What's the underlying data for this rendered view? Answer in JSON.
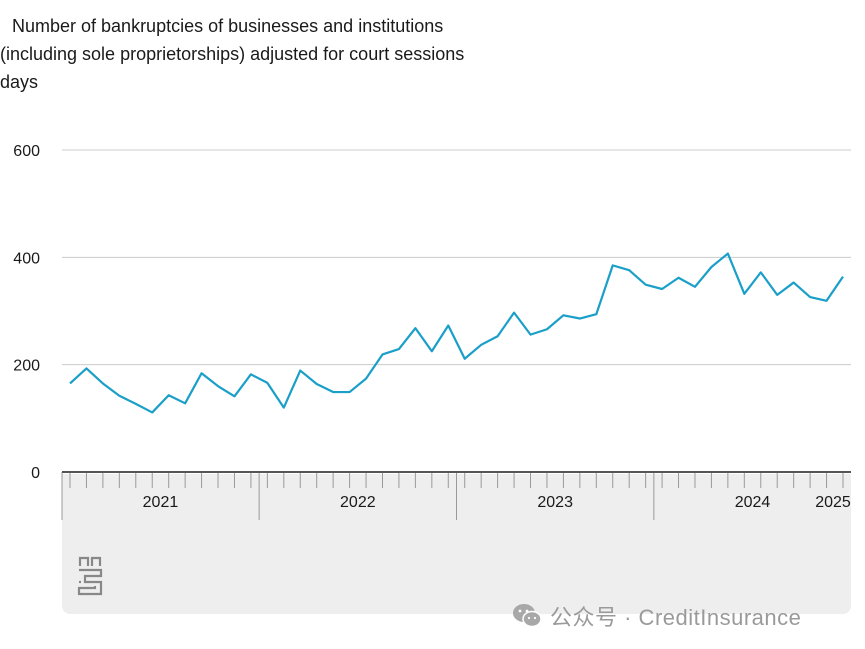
{
  "title_lines": [
    "Number of bankruptcies of businesses and institutions",
    "(including sole proprietorships) adjusted for court sessions",
    "days"
  ],
  "watermark": {
    "text": "公众号 · CreditInsurance",
    "icon": "wechat-icon"
  },
  "logo": {
    "icon": "cbs-logo-icon"
  },
  "colors": {
    "line": "#1a9fc8",
    "grid": "#cccccc",
    "axis": "#555555",
    "timeline_bg": "#eeeeee"
  },
  "chart_data": {
    "type": "line",
    "title": "Number of bankruptcies of businesses and institutions (including sole proprietorships) adjusted for court sessions days",
    "xlabel": "",
    "ylabel": "",
    "ylim": [
      0,
      600
    ],
    "yticks": [
      0,
      200,
      400,
      600
    ],
    "grid": true,
    "x_start": "2021-01",
    "year_labels": [
      "2021",
      "2022",
      "2023",
      "2024",
      "2025"
    ],
    "series": [
      {
        "values": [
          165,
          193,
          165,
          142,
          127,
          111,
          143,
          128,
          184,
          160,
          141,
          182,
          166,
          120,
          189,
          164,
          149,
          149,
          174,
          219,
          229,
          268,
          225,
          273,
          211,
          237,
          253,
          297,
          256,
          266,
          292,
          286,
          294,
          385,
          376,
          349,
          341,
          362,
          345,
          382,
          407,
          332,
          372,
          330,
          353,
          326,
          319,
          364
        ]
      }
    ]
  }
}
